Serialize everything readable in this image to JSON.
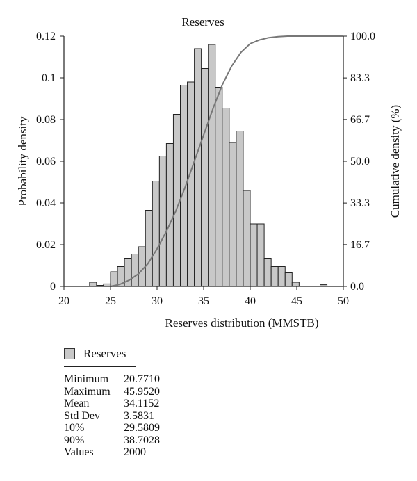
{
  "chart_data": {
    "type": "bar",
    "title": "Reserves",
    "xlabel": "Reserves distribution (MMSTB)",
    "ylabel": "Probability density",
    "y2label": "Cumulative density (%)",
    "xlim": [
      20,
      50
    ],
    "ylim": [
      0,
      0.12
    ],
    "y2lim": [
      0,
      100
    ],
    "x_ticks": [
      "20",
      "25",
      "30",
      "35",
      "40",
      "45",
      "50"
    ],
    "y_ticks": [
      "0",
      "0.02",
      "0.04",
      "0.06",
      "0.08",
      "0.1",
      "0.12"
    ],
    "y2_ticks": [
      "0.0",
      "16.7",
      "33.3",
      "50.0",
      "66.7",
      "83.3",
      "100.0"
    ],
    "bin_width": 0.75,
    "bins": [
      {
        "x0": 22.75,
        "value": 0.002
      },
      {
        "x0": 23.5,
        "value": 0.0005
      },
      {
        "x0": 24.25,
        "value": 0.0012
      },
      {
        "x0": 25.0,
        "value": 0.007
      },
      {
        "x0": 25.75,
        "value": 0.0095
      },
      {
        "x0": 26.5,
        "value": 0.0135
      },
      {
        "x0": 27.25,
        "value": 0.0155
      },
      {
        "x0": 28.0,
        "value": 0.019
      },
      {
        "x0": 28.75,
        "value": 0.0365
      },
      {
        "x0": 29.5,
        "value": 0.0505
      },
      {
        "x0": 30.25,
        "value": 0.0625
      },
      {
        "x0": 31.0,
        "value": 0.0685
      },
      {
        "x0": 31.75,
        "value": 0.0825
      },
      {
        "x0": 32.5,
        "value": 0.0965
      },
      {
        "x0": 33.25,
        "value": 0.098
      },
      {
        "x0": 34.0,
        "value": 0.114
      },
      {
        "x0": 34.75,
        "value": 0.1045
      },
      {
        "x0": 35.5,
        "value": 0.116
      },
      {
        "x0": 36.25,
        "value": 0.0955
      },
      {
        "x0": 37.0,
        "value": 0.0855
      },
      {
        "x0": 37.75,
        "value": 0.069
      },
      {
        "x0": 38.5,
        "value": 0.0745
      },
      {
        "x0": 39.25,
        "value": 0.046
      },
      {
        "x0": 40.0,
        "value": 0.03
      },
      {
        "x0": 40.75,
        "value": 0.03
      },
      {
        "x0": 41.5,
        "value": 0.0135
      },
      {
        "x0": 42.25,
        "value": 0.0095
      },
      {
        "x0": 43.0,
        "value": 0.0095
      },
      {
        "x0": 43.75,
        "value": 0.0065
      },
      {
        "x0": 44.5,
        "value": 0.002
      },
      {
        "x0": 47.5,
        "value": 0.0008
      }
    ],
    "cumulative": {
      "x": [
        25.0,
        26.0,
        27.0,
        28.0,
        29.0,
        30.0,
        31.0,
        32.0,
        33.0,
        34.0,
        35.0,
        36.0,
        37.0,
        38.0,
        39.0,
        40.0,
        41.0,
        42.0,
        43.0,
        44.0,
        45.0,
        47.0,
        50.0
      ],
      "y": [
        0.0,
        0.8,
        2.5,
        5.0,
        9.0,
        15.0,
        22.0,
        30.0,
        39.5,
        50.0,
        60.5,
        71.0,
        80.5,
        88.0,
        93.5,
        97.0,
        98.5,
        99.4,
        99.8,
        100.0,
        100.0,
        100.0,
        100.0
      ]
    }
  },
  "legend": {
    "swatch_color": "#c8c8c8",
    "label": "Reserves"
  },
  "stats": [
    {
      "label": "Minimum",
      "value": "20.7710"
    },
    {
      "label": "Maximum",
      "value": "45.9520"
    },
    {
      "label": "Mean",
      "value": "34.1152"
    },
    {
      "label": "Std Dev",
      "value": "3.5831"
    },
    {
      "label": "10%",
      "value": "29.5809"
    },
    {
      "label": "90%",
      "value": "38.7028"
    },
    {
      "label": "Values",
      "value": "2000"
    }
  ],
  "colors": {
    "bar_fill": "#c8c8c8",
    "bar_stroke": "#222222",
    "cumulative_line": "#777777"
  }
}
